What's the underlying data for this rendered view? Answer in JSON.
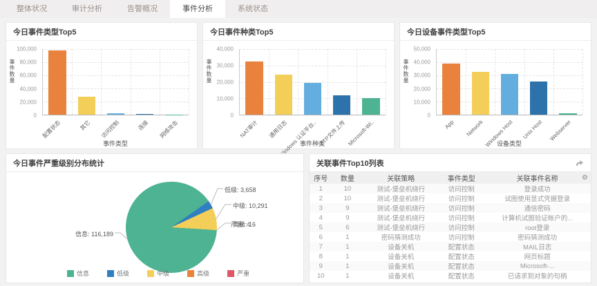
{
  "tabs": [
    {
      "label": "整体状况",
      "active": false
    },
    {
      "label": "审计分析",
      "active": false
    },
    {
      "label": "告警概况",
      "active": false
    },
    {
      "label": "事件分析",
      "active": true
    },
    {
      "label": "系统状态",
      "active": false
    }
  ],
  "palette": [
    "#e8823c",
    "#f3cf5a",
    "#63aede",
    "#2d72ab",
    "#4db392"
  ],
  "chart_data": [
    {
      "type": "bar",
      "title": "今日事件类型Top5",
      "xlabel": "事件类型",
      "ylabel": "事件数量",
      "ylim": [
        0,
        100000
      ],
      "yticks": [
        "100,000",
        "80,000",
        "60,000",
        "40,000",
        "20,000",
        "0"
      ],
      "categories": [
        "配置状态",
        "其它",
        "访问控制",
        "连接",
        "网络攻击"
      ],
      "values": [
        98000,
        27000,
        2500,
        1200,
        300
      ],
      "grid": true,
      "legend_position": "none"
    },
    {
      "type": "bar",
      "title": "今日事件种类Top5",
      "xlabel": "事件种类",
      "ylabel": "事件数量",
      "ylim": [
        0,
        40000
      ],
      "yticks": [
        "40,000",
        "30,000",
        "20,000",
        "10,000",
        "0"
      ],
      "categories": [
        "NAT审计",
        "通用日志",
        "Windows 认证平台..",
        "FTP文件上传",
        "Microsoft-Wi.."
      ],
      "values": [
        32500,
        24300,
        19200,
        12000,
        10200
      ],
      "grid": true,
      "legend_position": "none"
    },
    {
      "type": "bar",
      "title": "今日设备事件类型Top5",
      "xlabel": "设备类型",
      "ylabel": "事件数量",
      "ylim": [
        0,
        50000
      ],
      "yticks": [
        "50,000",
        "40,000",
        "30,000",
        "20,000",
        "10,000",
        "0"
      ],
      "categories": [
        "App",
        "Network",
        "Windows Host",
        "Unix Host",
        "Webserver"
      ],
      "values": [
        39000,
        32500,
        31200,
        25500,
        1000
      ],
      "grid": true,
      "legend_position": "none"
    },
    {
      "type": "pie",
      "title": "今日事件严重级别分布统计",
      "labels": [
        "信息",
        "低级",
        "中级",
        "高级",
        "严重"
      ],
      "values": [
        116189,
        3658,
        10291,
        16,
        4
      ],
      "colors": [
        "#4db392",
        "#2f7fc1",
        "#f3cf5a",
        "#e8823c",
        "#e05667"
      ],
      "callouts": [
        "信息: 116,189",
        "低级: 3,658",
        "中级: 10,291",
        "高级: 16",
        "严重: 4"
      ],
      "legend_position": "bottom"
    }
  ],
  "table": {
    "title": "关联事件Top10列表",
    "columns": [
      "序号",
      "数量",
      "关联策略",
      "事件类型",
      "关联事件名称"
    ],
    "rows": [
      [
        "1",
        "10",
        "测试-堡垒机绕行",
        "访问控制",
        "登录成功"
      ],
      [
        "2",
        "10",
        "测试-堡垒机绕行",
        "访问控制",
        "试图使用显式凭据登录"
      ],
      [
        "3",
        "9",
        "测试-堡垒机绕行",
        "访问控制",
        "通信密码"
      ],
      [
        "4",
        "9",
        "测试-堡垒机绕行",
        "访问控制",
        "计算机试图验证帐户的..."
      ],
      [
        "5",
        "6",
        "测试-堡垒机绕行",
        "访问控制",
        "root登录"
      ],
      [
        "6",
        "1",
        "密码猜测成功",
        "访问控制",
        "密码猜测成功"
      ],
      [
        "7",
        "1",
        "设备关机",
        "配置状态",
        "MAIL日志"
      ],
      [
        "8",
        "1",
        "设备关机",
        "配置状态",
        "网页标题"
      ],
      [
        "9",
        "1",
        "设备关机",
        "配置状态",
        "Microsoft-..."
      ],
      [
        "10",
        "1",
        "设备关机",
        "配置状态",
        "已请求到对象的句柄"
      ]
    ]
  }
}
